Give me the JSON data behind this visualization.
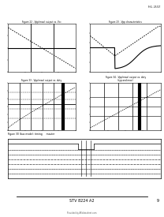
{
  "background": "#ffffff",
  "fig_label_top_right": "FIG. 25/27",
  "top_left_title": "Figure 22 - Vpp(max) output vs. Vcc",
  "top_right_title": "Figure 23 - Vpp characteristics",
  "mid_left_title": "Figure 33 - Vpp(max) output vs. duty",
  "mid_right_title": "Figure 34 - Vpp(max) output vs. duty\n(typ and max)",
  "bot_title": "Figure 30 (bus mode): timing     master",
  "footer_center": "STV 8224 A2",
  "footer_page": "9",
  "copyright": "Provided by Alldatasheet.com"
}
